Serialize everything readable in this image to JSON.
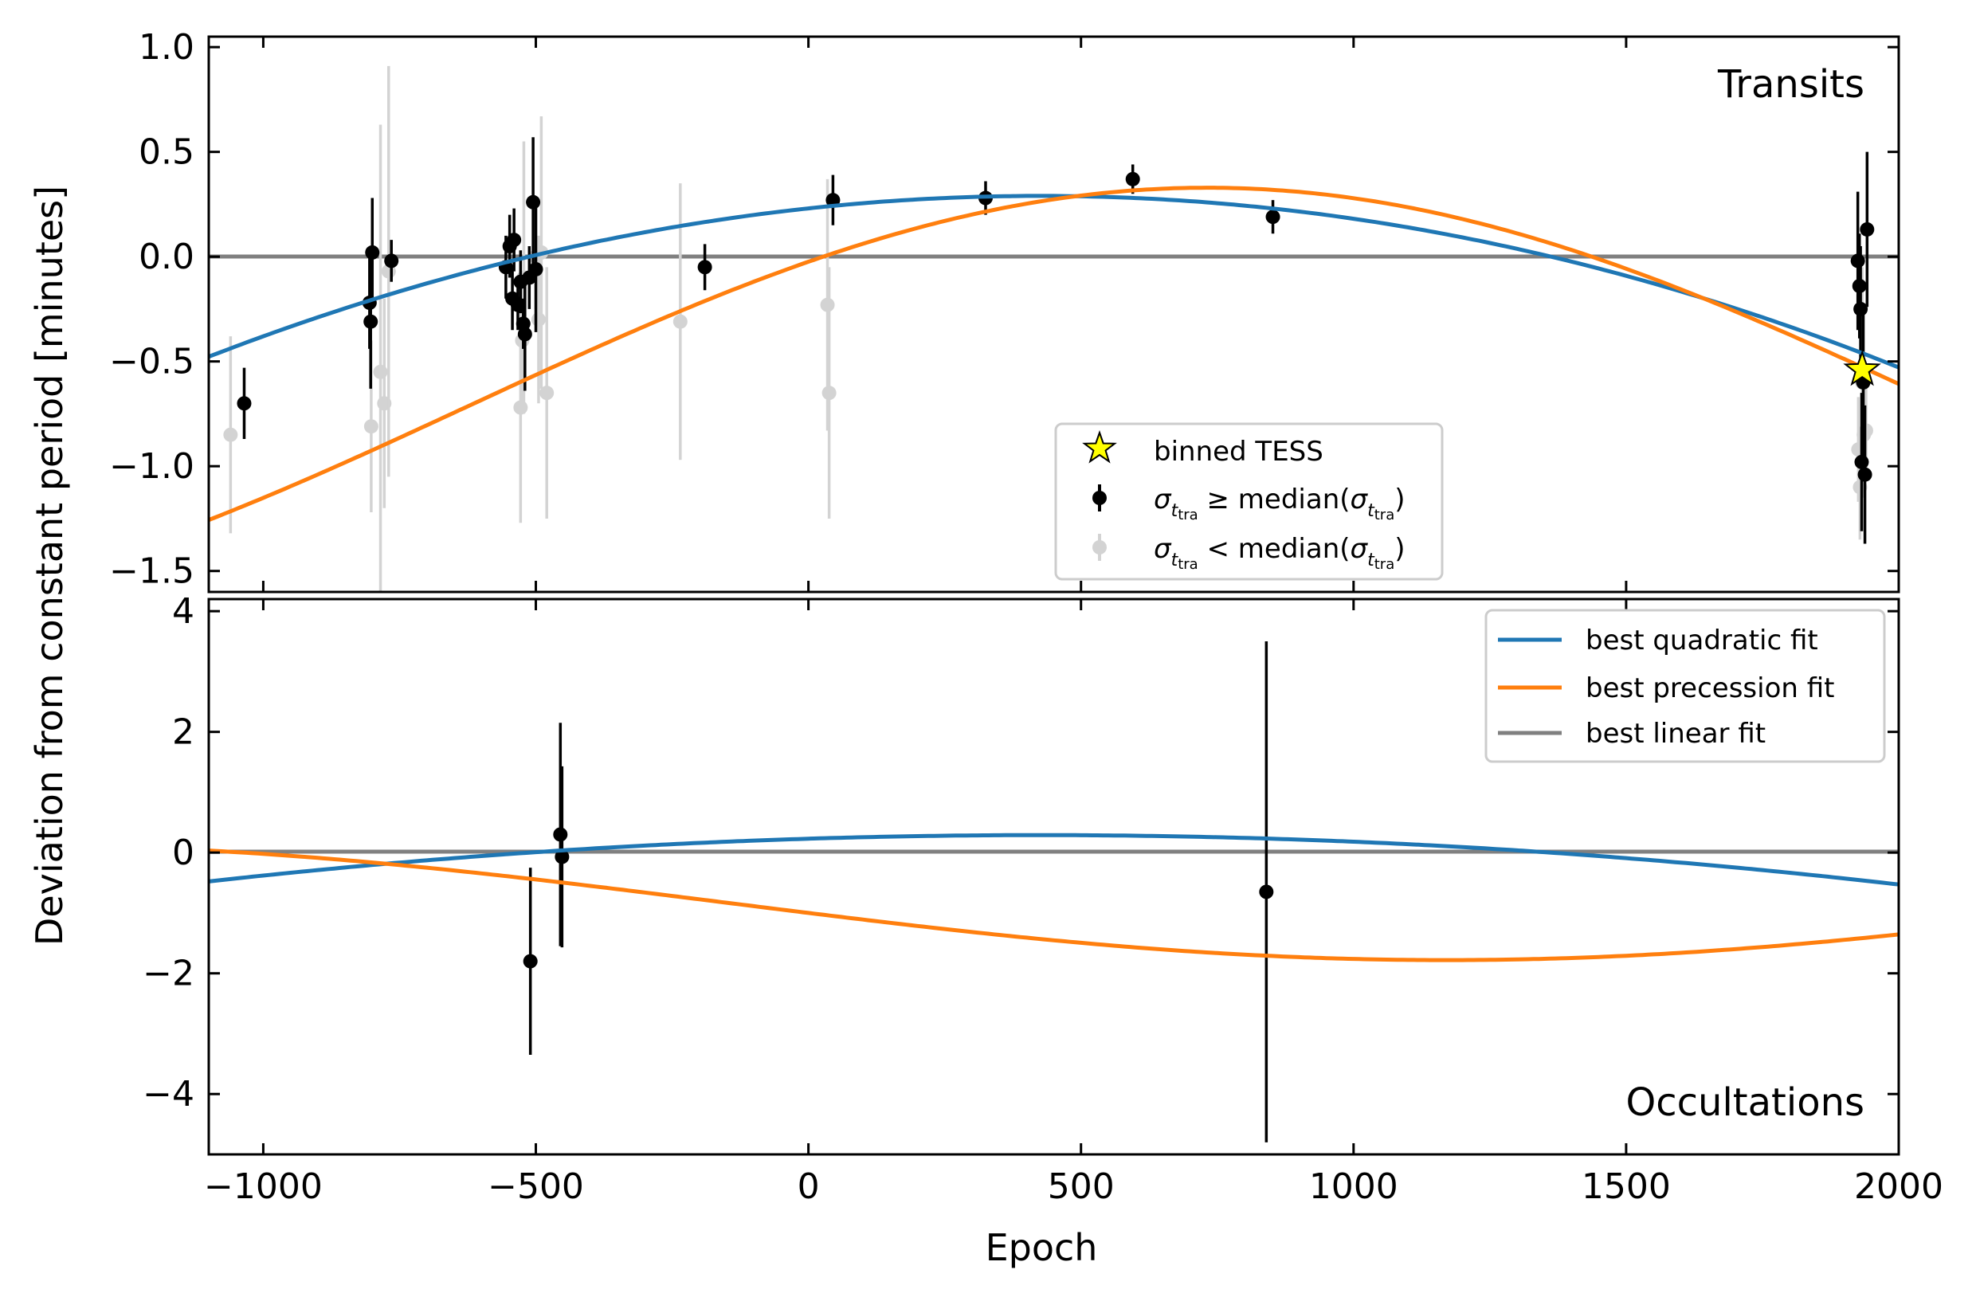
{
  "chart_data": [
    {
      "type": "scatter",
      "panel": "top",
      "annotation": "Transits",
      "xlim": [
        -1100,
        2000
      ],
      "ylim": [
        -1.6,
        1.05
      ],
      "yticks": [
        1.0,
        0.5,
        0.0,
        -0.5,
        -1.0,
        -1.5
      ],
      "ytick_labels": [
        "1.0",
        "0.5",
        "0.0",
        "−0.5",
        "−1.0",
        "−1.5"
      ],
      "legend": {
        "placement": "lower-center",
        "entries": [
          {
            "label": "binned TESS",
            "marker": "star"
          },
          {
            "label": "σ_ttra ≥ median(σ_ttra)",
            "marker": "dot-black"
          },
          {
            "label": "σ_ttra < median(σ_ttra)",
            "marker": "dot-gray"
          }
        ]
      },
      "series": [
        {
          "name": "σ_ttra ≥ median(σ_ttra)",
          "color": "#000000",
          "points": [
            {
              "x": -1035,
              "y": -0.7,
              "err": 0.17
            },
            {
              "x": -805,
              "y": -0.22,
              "err": 0.22
            },
            {
              "x": -803,
              "y": -0.31,
              "err": 0.32
            },
            {
              "x": -800,
              "y": 0.02,
              "err": 0.26
            },
            {
              "x": -765,
              "y": -0.02,
              "err": 0.1
            },
            {
              "x": -555,
              "y": -0.05,
              "err": 0.15
            },
            {
              "x": -548,
              "y": 0.05,
              "err": 0.15
            },
            {
              "x": -543,
              "y": -0.2,
              "err": 0.15
            },
            {
              "x": -540,
              "y": 0.08,
              "err": 0.15
            },
            {
              "x": -533,
              "y": -0.23,
              "err": 0.12
            },
            {
              "x": -528,
              "y": -0.12,
              "err": 0.15
            },
            {
              "x": -523,
              "y": -0.32,
              "err": 0.12
            },
            {
              "x": -520,
              "y": -0.37,
              "err": 0.27
            },
            {
              "x": -512,
              "y": -0.1,
              "err": 0.15
            },
            {
              "x": -505,
              "y": 0.26,
              "err": 0.31
            },
            {
              "x": -500,
              "y": -0.06,
              "err": 0.3
            },
            {
              "x": -190,
              "y": -0.05,
              "err": 0.11
            },
            {
              "x": 45,
              "y": 0.27,
              "err": 0.12
            },
            {
              "x": 325,
              "y": 0.28,
              "err": 0.08
            },
            {
              "x": 595,
              "y": 0.37,
              "err": 0.07
            },
            {
              "x": 852,
              "y": 0.19,
              "err": 0.08
            },
            {
              "x": 1925,
              "y": -0.02,
              "err": 0.33
            },
            {
              "x": 1928,
              "y": -0.14,
              "err": 0.25
            },
            {
              "x": 1930,
              "y": -0.25,
              "err": 0.3
            },
            {
              "x": 1932,
              "y": -0.98,
              "err": 0.33
            },
            {
              "x": 1935,
              "y": -0.6,
              "err": 0.35
            },
            {
              "x": 1938,
              "y": -1.04,
              "err": 0.33
            },
            {
              "x": 1942,
              "y": 0.13,
              "err": 0.37
            }
          ]
        },
        {
          "name": "σ_ttra < median(σ_ttra)",
          "color": "#d3d3d3",
          "points": [
            {
              "x": -1060,
              "y": -0.85,
              "err": 0.47
            },
            {
              "x": -802,
              "y": -0.81,
              "err": 0.41
            },
            {
              "x": -785,
              "y": -0.55,
              "err": 1.18
            },
            {
              "x": -778,
              "y": -0.7,
              "err": 0.5
            },
            {
              "x": -770,
              "y": -0.07,
              "err": 0.98
            },
            {
              "x": -528,
              "y": -0.72,
              "err": 0.55
            },
            {
              "x": -525,
              "y": -0.4,
              "err": 0.3
            },
            {
              "x": -522,
              "y": -0.1,
              "err": 0.65
            },
            {
              "x": -500,
              "y": 0.0,
              "err": 0.25
            },
            {
              "x": -495,
              "y": -0.3,
              "err": 0.4
            },
            {
              "x": -490,
              "y": 0.02,
              "err": 0.65
            },
            {
              "x": -480,
              "y": -0.65,
              "err": 0.6
            },
            {
              "x": -235,
              "y": -0.31,
              "err": 0.66
            },
            {
              "x": 35,
              "y": -0.23,
              "err": 0.6
            },
            {
              "x": 38,
              "y": -0.65,
              "err": 0.6
            },
            {
              "x": 1926,
              "y": -0.92,
              "err": 0.25
            },
            {
              "x": 1929,
              "y": -1.1,
              "err": 0.25
            },
            {
              "x": 1933,
              "y": -0.6,
              "err": 0.55
            },
            {
              "x": 1936,
              "y": -0.85,
              "err": 0.2
            },
            {
              "x": 1940,
              "y": -0.83,
              "err": 0.2
            }
          ]
        },
        {
          "name": "binned TESS",
          "color": "#ffff00",
          "points": [
            {
              "x": 1933,
              "y": -0.54,
              "err": 0.03
            }
          ]
        }
      ]
    },
    {
      "type": "scatter",
      "panel": "bottom",
      "annotation": "Occultations",
      "xlabel": "Epoch",
      "xlim": [
        -1100,
        2000
      ],
      "ylim": [
        -5.0,
        4.2
      ],
      "xticks": [
        -1000,
        -500,
        0,
        500,
        1000,
        1500,
        2000
      ],
      "xtick_labels": [
        "−1000",
        "−500",
        "0",
        "500",
        "1000",
        "1500",
        "2000"
      ],
      "yticks": [
        4,
        2,
        0,
        -2,
        -4
      ],
      "ytick_labels": [
        "4",
        "2",
        "0",
        "−2",
        "−4"
      ],
      "legend": {
        "placement": "top-right",
        "entries": [
          {
            "label": "best quadratic fit",
            "color": "#1f77b4"
          },
          {
            "label": "best precession fit",
            "color": "#ff7f0e"
          },
          {
            "label": "best linear fit",
            "color": "#808080"
          }
        ]
      },
      "series": [
        {
          "name": "Occultations",
          "color": "#000000",
          "points": [
            {
              "x": -510,
              "y": -1.8,
              "err": 1.55
            },
            {
              "x": -455,
              "y": 0.3,
              "err": 1.85
            },
            {
              "x": -452,
              "y": -0.07,
              "err": 1.5
            },
            {
              "x": 840,
              "y": -0.65,
              "err": 4.15
            }
          ]
        }
      ]
    }
  ],
  "ylabel": "Deviation from constant period [minutes]"
}
